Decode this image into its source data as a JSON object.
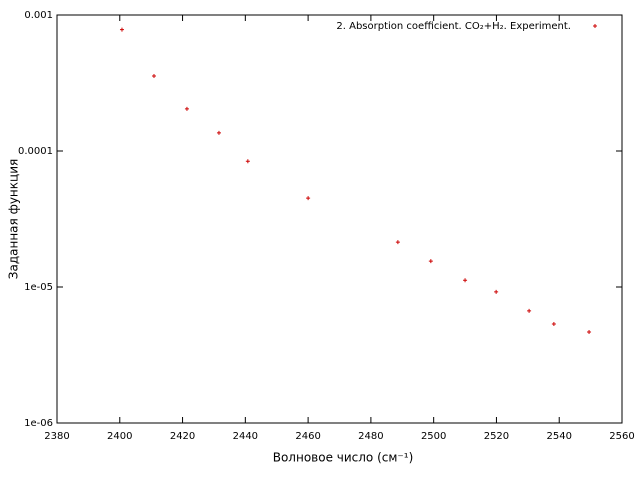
{
  "chart_data": {
    "type": "scatter",
    "x_label": "Волновое число (см⁻¹)",
    "y_label": "Заданная функция",
    "series": [
      {
        "name": "2. Absorption coefficient. CO₂+H₂. Experiment.",
        "color": "#cc0000",
        "x": [
          2400.7,
          2410.9,
          2421.4,
          2431.6,
          2440.8,
          2460.0,
          2488.6,
          2499.1,
          2510.0,
          2519.9,
          2530.4,
          2538.3,
          2549.5
        ],
        "values": [
          0.00078,
          0.000356,
          0.000204,
          0.000136,
          8.4e-05,
          4.5e-05,
          2.14e-05,
          1.55e-05,
          1.12e-05,
          9.2e-06,
          6.67e-06,
          5.35e-06,
          4.67e-06
        ]
      }
    ],
    "xlim": [
      2380,
      2560
    ],
    "xticks": [
      2380,
      2400,
      2420,
      2440,
      2460,
      2480,
      2500,
      2520,
      2540,
      2560
    ],
    "ylim": [
      1e-06,
      0.001
    ],
    "yticks": [
      {
        "value": 1e-06,
        "label": "1e-06"
      },
      {
        "value": 1e-05,
        "label": "1e-05"
      },
      0.0001,
      0.001
    ],
    "y_log": true,
    "grid": false,
    "legend": "top-right"
  }
}
